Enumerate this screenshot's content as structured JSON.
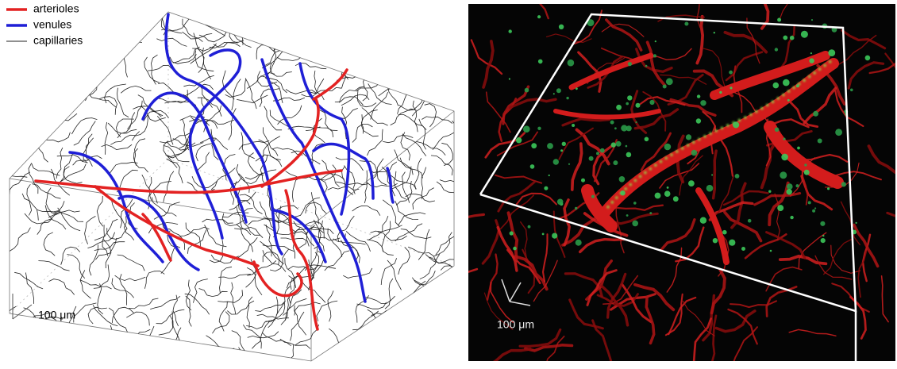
{
  "left_panel": {
    "legend": [
      {
        "label": "arterioles",
        "color": "#e32222"
      },
      {
        "label": "venules",
        "color": "#1f1fd6"
      },
      {
        "label": "capillaries",
        "color": "#222222"
      }
    ],
    "scale_bar": "100 μm"
  },
  "right_panel": {
    "scale_bar": "100 μm"
  }
}
